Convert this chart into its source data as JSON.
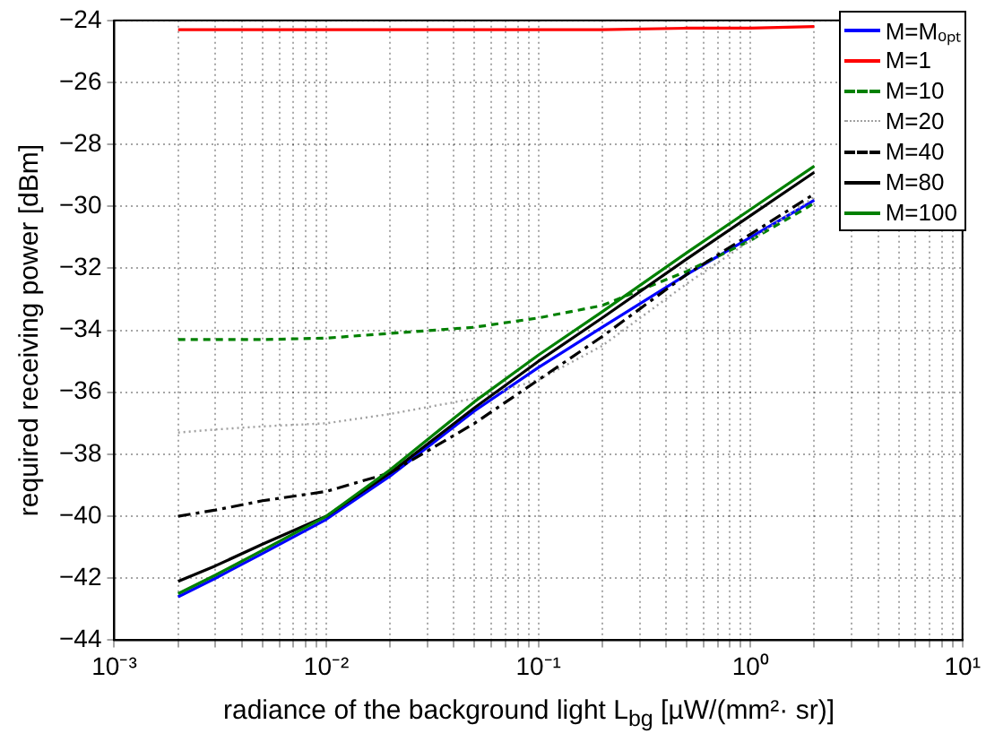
{
  "chart_data": {
    "type": "line",
    "xlabel": "radiance of the background light L$_{bg}$ [µW/(mm²· sr)]",
    "ylabel": "required receiving power [dBm]",
    "x": [
      0.002,
      0.003,
      0.005,
      0.01,
      0.02,
      0.05,
      0.1,
      0.2,
      0.5,
      1,
      2
    ],
    "series": [
      {
        "name": "M=Mₒₚₜ",
        "color": "#0000ff",
        "line_style": "solid",
        "values": [
          -42.6,
          -42.0,
          -41.2,
          -40.1,
          -38.7,
          -36.6,
          -35.2,
          -33.9,
          -32.2,
          -31.0,
          -29.8
        ]
      },
      {
        "name": "M=1",
        "color": "#ff0000",
        "line_style": "solid",
        "values": [
          -24.3,
          -24.3,
          -24.3,
          -24.3,
          -24.3,
          -24.3,
          -24.3,
          -24.3,
          -24.25,
          -24.25,
          -24.2
        ]
      },
      {
        "name": "M=10",
        "color": "#008000",
        "line_style": "dashed",
        "values": [
          -34.3,
          -34.3,
          -34.3,
          -34.25,
          -34.1,
          -33.9,
          -33.6,
          -33.2,
          -32.1,
          -31.1,
          -29.9
        ]
      },
      {
        "name": "M=20",
        "color": "#a0a0a0",
        "line_style": "dotted",
        "values": [
          -37.3,
          -37.2,
          -37.1,
          -37.0,
          -36.7,
          -36.2,
          -35.6,
          -34.5,
          -32.5,
          -31.1,
          -29.7
        ]
      },
      {
        "name": "M=40",
        "color": "#000000",
        "line_style": "dashdot",
        "values": [
          -40.0,
          -39.8,
          -39.5,
          -39.2,
          -38.6,
          -37.0,
          -35.6,
          -34.2,
          -32.2,
          -30.9,
          -29.6
        ]
      },
      {
        "name": "M=80",
        "color": "#000000",
        "line_style": "solid",
        "values": [
          -42.1,
          -41.6,
          -40.9,
          -40.0,
          -38.6,
          -36.5,
          -35.0,
          -33.6,
          -31.7,
          -30.3,
          -28.9
        ]
      },
      {
        "name": "M=100",
        "color": "#008000",
        "line_style": "solid",
        "values": [
          -42.5,
          -41.9,
          -41.1,
          -40.0,
          -38.5,
          -36.3,
          -34.8,
          -33.4,
          -31.5,
          -30.1,
          -28.7
        ]
      }
    ],
    "log": "x",
    "xlim": [
      0.001,
      10
    ],
    "xticks": [
      {
        "value": 0.001,
        "label": "10⁻³"
      },
      {
        "value": 0.002,
        "label": null
      },
      {
        "value": 0.003,
        "label": null
      },
      {
        "value": 0.004,
        "label": null
      },
      {
        "value": 0.005,
        "label": null
      },
      {
        "value": 0.006,
        "label": null
      },
      {
        "value": 0.007,
        "label": null
      },
      {
        "value": 0.008,
        "label": null
      },
      {
        "value": 0.009,
        "label": null
      },
      {
        "value": 0.01,
        "label": "10⁻²"
      },
      {
        "value": 0.02,
        "label": null
      },
      {
        "value": 0.03,
        "label": null
      },
      {
        "value": 0.04,
        "label": null
      },
      {
        "value": 0.05,
        "label": null
      },
      {
        "value": 0.06,
        "label": null
      },
      {
        "value": 0.07,
        "label": null
      },
      {
        "value": 0.08,
        "label": null
      },
      {
        "value": 0.09,
        "label": null
      },
      {
        "value": 0.1,
        "label": "10⁻¹"
      },
      {
        "value": 0.2,
        "label": null
      },
      {
        "value": 0.3,
        "label": null
      },
      {
        "value": 0.4,
        "label": null
      },
      {
        "value": 0.5,
        "label": null
      },
      {
        "value": 0.6,
        "label": null
      },
      {
        "value": 0.7,
        "label": null
      },
      {
        "value": 0.8,
        "label": null
      },
      {
        "value": 0.9,
        "label": null
      },
      {
        "value": 1,
        "label": "10⁰"
      },
      {
        "value": 2,
        "label": null
      },
      {
        "value": 3,
        "label": null
      },
      {
        "value": 4,
        "label": null
      },
      {
        "value": 5,
        "label": null
      },
      {
        "value": 6,
        "label": null
      },
      {
        "value": 7,
        "label": null
      },
      {
        "value": 8,
        "label": null
      },
      {
        "value": 9,
        "label": null
      },
      {
        "value": 10,
        "label": "10¹"
      }
    ],
    "ylim": [
      -44,
      -24
    ],
    "yticks": [
      -44,
      -42,
      -40,
      -38,
      -36,
      -34,
      -32,
      -30,
      -28,
      -26,
      -24
    ],
    "grid": true,
    "legend": "top right",
    "marker": "none"
  }
}
